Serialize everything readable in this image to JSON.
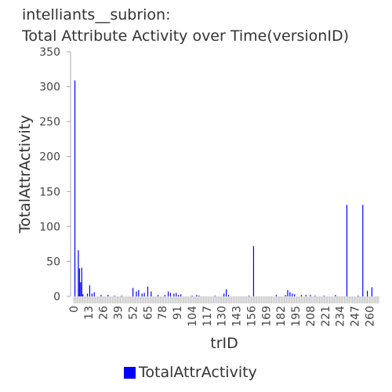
{
  "title_line1": "intelliants__subrion:",
  "title_line2": "Total Attribute Activity over Time(versionID)",
  "chart_data": {
    "type": "bar",
    "title": "intelliants__subrion: Total Attribute Activity over Time(versionID)",
    "xlabel": "trID",
    "ylabel": "TotalAttrActivity",
    "ylim": [
      0,
      350
    ],
    "yticks": [
      0,
      50,
      100,
      150,
      200,
      250,
      300,
      350
    ],
    "xlim": [
      0,
      268
    ],
    "xticks": [
      0,
      13,
      26,
      39,
      52,
      65,
      78,
      91,
      104,
      117,
      130,
      143,
      156,
      169,
      182,
      195,
      208,
      221,
      234,
      247,
      260
    ],
    "grid": false,
    "legend_position": "bottom",
    "color": "#0000ff",
    "series": [
      {
        "name": "TotalAttrActivity",
        "x": [
          1,
          4,
          5,
          6,
          7,
          8,
          12,
          14,
          16,
          18,
          24,
          30,
          36,
          42,
          52,
          55,
          57,
          60,
          62,
          65,
          68,
          74,
          80,
          83,
          85,
          88,
          90,
          92,
          94,
          104,
          108,
          110,
          124,
          132,
          134,
          136,
          154,
          158,
          178,
          186,
          188,
          190,
          192,
          194,
          200,
          204,
          208,
          212,
          220,
          230,
          240,
          250,
          254,
          258,
          262
        ],
        "y": [
          309,
          66,
          40,
          20,
          41,
          3,
          4,
          16,
          4,
          6,
          2,
          2,
          1,
          1,
          12,
          7,
          9,
          4,
          5,
          14,
          7,
          2,
          2,
          7,
          5,
          4,
          5,
          2,
          3,
          1,
          2,
          1,
          1,
          4,
          10,
          2,
          1,
          72,
          2,
          2,
          9,
          6,
          4,
          3,
          2,
          2,
          2,
          1,
          1,
          2,
          131,
          1,
          131,
          8,
          13
        ]
      }
    ]
  }
}
